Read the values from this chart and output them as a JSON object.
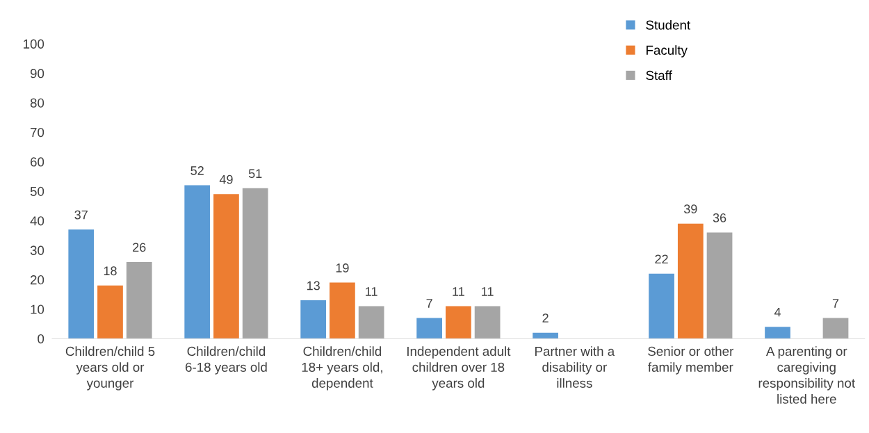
{
  "chart_data": {
    "type": "bar",
    "categories": [
      "Children/child 5 years old or younger",
      "Children/child 6-18 years old",
      "Children/child 18+ years old, dependent",
      "Independent adult children over 18 years old",
      "Partner with a disability or illness",
      "Senior or other family member",
      "A parenting or caregiving responsibility not listed here"
    ],
    "series": [
      {
        "name": "Student",
        "color": "#5b9bd5",
        "values": [
          37,
          52,
          13,
          7,
          2,
          22,
          4
        ]
      },
      {
        "name": "Faculty",
        "color": "#ed7d31",
        "values": [
          18,
          49,
          19,
          11,
          null,
          39,
          null
        ]
      },
      {
        "name": "Staff",
        "color": "#a5a5a5",
        "values": [
          26,
          51,
          11,
          11,
          null,
          36,
          7
        ]
      }
    ],
    "ylim": [
      0,
      100
    ],
    "yticks": [
      0,
      10,
      20,
      30,
      40,
      50,
      60,
      70,
      80,
      90,
      100
    ],
    "grid": false,
    "legend": "top right",
    "data_labels": true
  }
}
